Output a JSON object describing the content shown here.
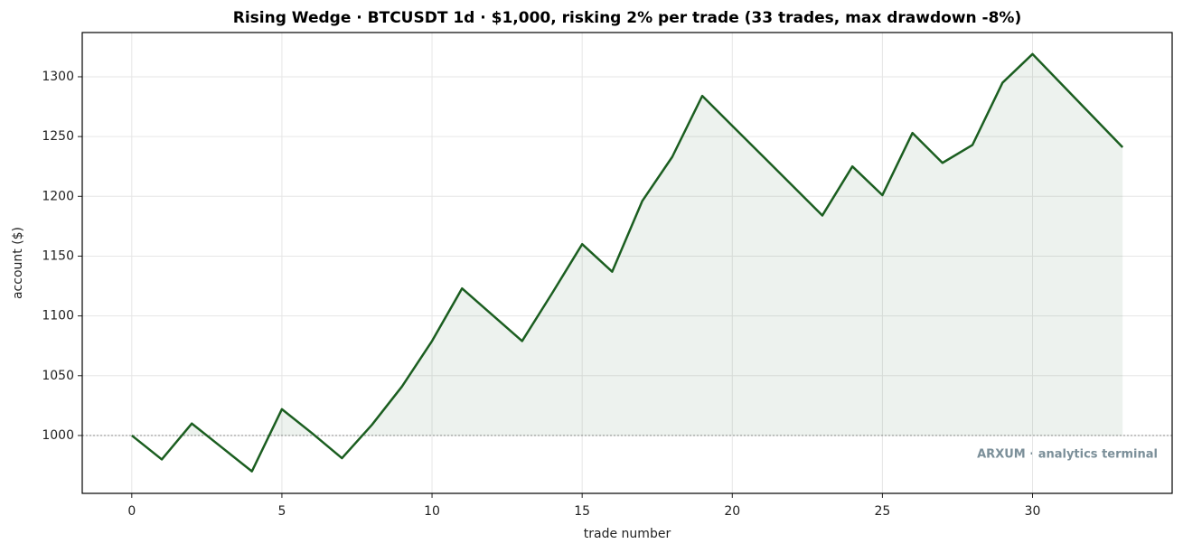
{
  "chart_data": {
    "type": "line",
    "title": "Rising Wedge · BTCUSDT 1d · $1,000, risking 2% per trade (33 trades, max drawdown -8%)",
    "xlabel": "trade number",
    "ylabel": "account ($)",
    "watermark": "ARXUM · analytics terminal",
    "x": [
      0,
      1,
      2,
      3,
      4,
      5,
      6,
      7,
      8,
      9,
      10,
      11,
      12,
      13,
      14,
      15,
      16,
      17,
      18,
      19,
      20,
      21,
      22,
      23,
      24,
      25,
      26,
      27,
      28,
      29,
      30,
      31,
      32,
      33
    ],
    "series": [
      {
        "name": "account",
        "color": "#1b5e20",
        "values": [
          1000,
          980,
          1010,
          990,
          970,
          1022,
          1002,
          981,
          1009,
          1041,
          1079,
          1123,
          1101,
          1079,
          1119,
          1160,
          1137,
          1196,
          1233,
          1284,
          1259,
          1234,
          1209,
          1184,
          1225,
          1201,
          1253,
          1228,
          1243,
          1295,
          1319,
          1293,
          1267,
          1241
        ]
      }
    ],
    "baseline": 1000,
    "xlim": [
      -1.65,
      34.65
    ],
    "ylim": [
      951.6,
      1337
    ],
    "xticks": [
      0,
      5,
      10,
      15,
      20,
      25,
      30
    ],
    "yticks": [
      1000,
      1050,
      1100,
      1150,
      1200,
      1250,
      1300
    ],
    "grid": true
  }
}
